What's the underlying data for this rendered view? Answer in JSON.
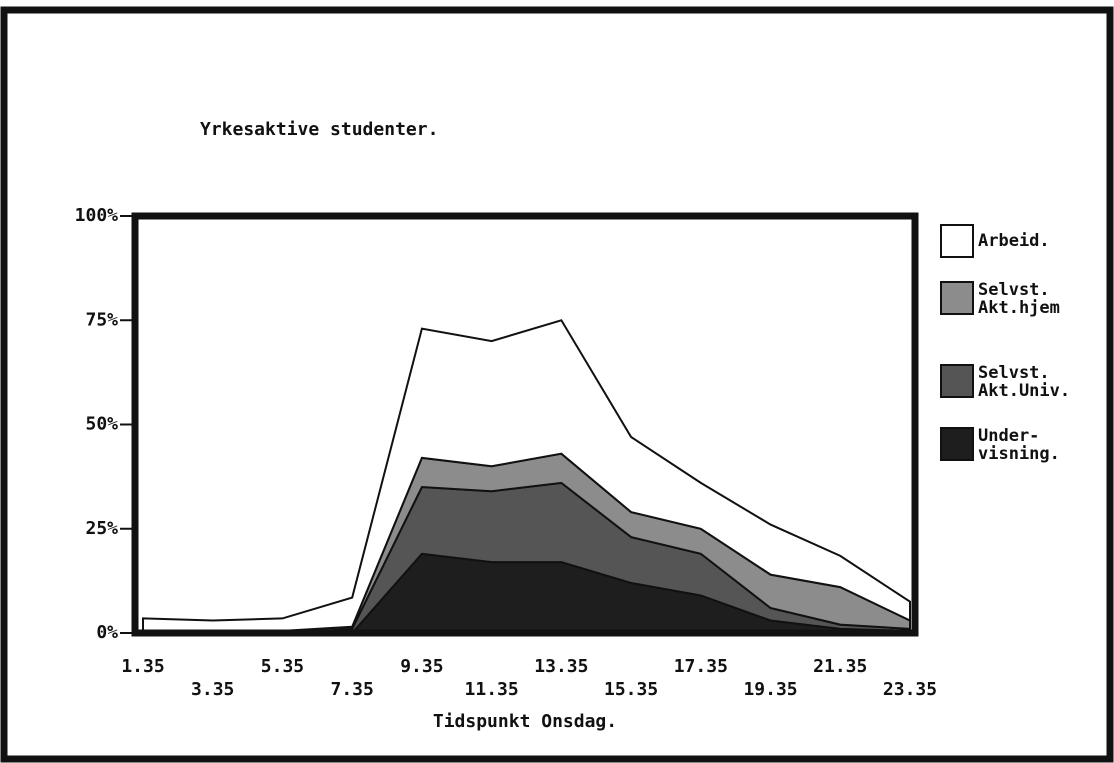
{
  "chart_data": {
    "type": "stacked-area",
    "title": "Yrkesaktive studenter.",
    "x_label": "Tidspunkt Onsdag.",
    "categories": [
      "1.35",
      "3.35",
      "5.35",
      "7.35",
      "9.35",
      "11.35",
      "13.35",
      "15.35",
      "17.35",
      "19.35",
      "21.35",
      "23.35"
    ],
    "ylim": [
      0,
      100
    ],
    "yticks": [
      {
        "value": 0,
        "label": "0%"
      },
      {
        "value": 25,
        "label": "25%"
      },
      {
        "value": 50,
        "label": "50%"
      },
      {
        "value": 75,
        "label": "75%"
      },
      {
        "value": 100,
        "label": "100%"
      }
    ],
    "series": [
      {
        "name": "Under-\nvisning.",
        "color": "#1e1e1e",
        "values": [
          0,
          0,
          0,
          0,
          19,
          17,
          17,
          12,
          9,
          3,
          1,
          0.5
        ]
      },
      {
        "name": "Selvst.\nAkt.Univ.",
        "color": "#555555",
        "values": [
          0,
          0,
          0,
          1,
          16,
          17,
          19,
          11,
          10,
          3,
          1,
          0.5
        ]
      },
      {
        "name": "Selvst.\nAkt.hjem",
        "color": "#8c8c8c",
        "values": [
          0.5,
          0.5,
          0.5,
          0.5,
          7,
          6,
          7,
          6,
          6,
          8,
          9,
          2
        ]
      },
      {
        "name": "Arbeid.",
        "color": "#ffffff",
        "values": [
          3,
          2.5,
          3,
          7,
          31,
          30,
          32,
          18,
          11,
          12,
          7.5,
          4.5
        ]
      }
    ]
  }
}
